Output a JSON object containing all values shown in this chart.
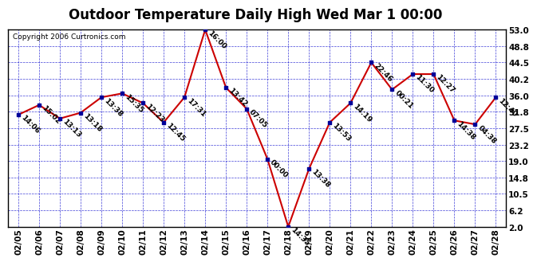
{
  "title": "Outdoor Temperature Daily High Wed Mar 1 00:00",
  "copyright": "Copyright 2006 Curtronics.com",
  "background_color": "#ffffff",
  "plot_bg_color": "#ffffff",
  "line_color": "#cc0000",
  "marker_color": "#000099",
  "grid_color": "#0000cc",
  "dates": [
    "02/05",
    "02/06",
    "02/07",
    "02/08",
    "02/09",
    "02/10",
    "02/11",
    "02/12",
    "02/13",
    "02/14",
    "02/15",
    "02/16",
    "02/17",
    "02/18",
    "02/19",
    "02/20",
    "02/21",
    "02/22",
    "02/23",
    "02/24",
    "02/25",
    "02/26",
    "02/27",
    "02/28"
  ],
  "values": [
    31.0,
    33.5,
    30.0,
    31.5,
    35.5,
    36.5,
    34.0,
    29.0,
    35.5,
    53.0,
    38.0,
    32.5,
    19.5,
    2.0,
    17.0,
    29.0,
    34.0,
    44.5,
    37.5,
    41.5,
    41.5,
    29.5,
    28.5,
    35.5
  ],
  "labels": [
    "14:06",
    "15:02",
    "13:13",
    "13:18",
    "13:38",
    "15:35",
    "12:23",
    "12:45",
    "17:31",
    "16:00",
    "13:42",
    "07:05",
    "00:00",
    "14:35",
    "13:38",
    "13:53",
    "14:19",
    "22:46",
    "00:21",
    "11:30",
    "12:27",
    "14:38",
    "04:38",
    "12:40"
  ],
  "yticks": [
    2.0,
    6.2,
    10.5,
    14.8,
    19.0,
    23.2,
    27.5,
    31.8,
    36.0,
    40.2,
    44.5,
    48.8,
    53.0
  ],
  "ylim": [
    2.0,
    53.0
  ],
  "title_fontsize": 12,
  "tick_fontsize": 7.5,
  "label_fontsize": 6.5,
  "copyright_fontsize": 6.5
}
